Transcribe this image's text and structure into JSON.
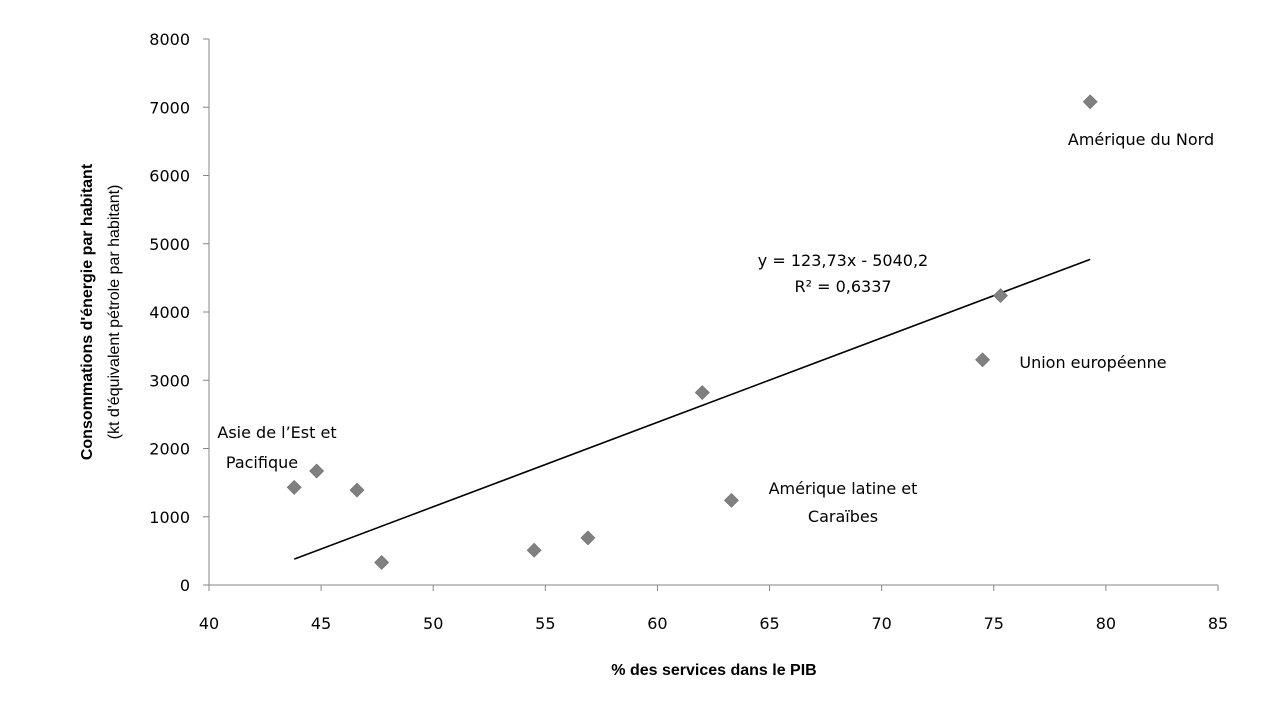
{
  "chart_data": {
    "type": "scatter",
    "title": "",
    "xlabel": "% des services dans le PIB",
    "ylabel_line1": "Consommations d'énergie par habitant",
    "ylabel_line2": "(kt d'équivalent pétrole par habitant)",
    "xlim": [
      40,
      85
    ],
    "ylim": [
      0,
      8000
    ],
    "x_ticks": [
      40,
      45,
      50,
      55,
      60,
      65,
      70,
      75,
      80,
      85
    ],
    "y_ticks": [
      0,
      1000,
      2000,
      3000,
      4000,
      5000,
      6000,
      7000,
      8000
    ],
    "grid": false,
    "legend": "none",
    "marker_color": "#808080",
    "series": [
      {
        "points": [
          {
            "x": 43.8,
            "y": 1430
          },
          {
            "x": 44.8,
            "y": 1670
          },
          {
            "x": 46.6,
            "y": 1390
          },
          {
            "x": 47.7,
            "y": 330
          },
          {
            "x": 54.5,
            "y": 510
          },
          {
            "x": 56.9,
            "y": 690
          },
          {
            "x": 62.0,
            "y": 2820
          },
          {
            "x": 63.3,
            "y": 1240
          },
          {
            "x": 74.5,
            "y": 3300
          },
          {
            "x": 75.3,
            "y": 4240
          },
          {
            "x": 79.3,
            "y": 7080
          }
        ]
      }
    ],
    "trendline": {
      "x_start": 43.8,
      "x_end": 79.3,
      "slope": 123.73,
      "intercept": -5040.2,
      "equation_label": "y = 123,73x - 5040,2",
      "r2_label": "R² = 0,6337"
    },
    "annotations": [
      {
        "lines": [
          "Amérique du Nord"
        ]
      },
      {
        "lines": [
          "Union européenne"
        ]
      },
      {
        "lines": [
          "Asie de l’Est  et",
          "Pacifique"
        ]
      },
      {
        "lines": [
          "Amérique latine et",
          "Caraïbes"
        ]
      }
    ]
  }
}
